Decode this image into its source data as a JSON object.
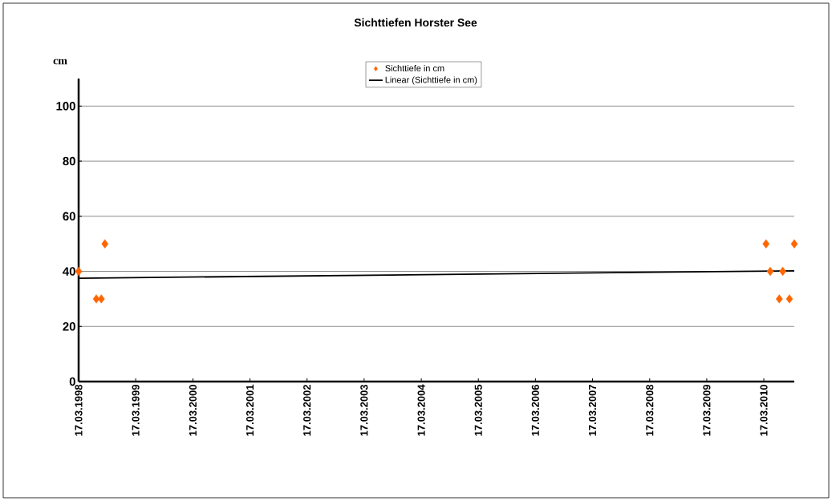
{
  "chart_data": {
    "type": "scatter",
    "title": "Sichttiefen Horster See",
    "ylabel": "cm",
    "series": [
      {
        "name": "Sichttiefe in cm",
        "color": "#ff6600",
        "marker": "diamond",
        "x": [
          "1998-03-17",
          "1998-07-08",
          "1998-08-09",
          "1998-09-01",
          "2010-03-31",
          "2010-04-27",
          "2010-06-24",
          "2010-07-16",
          "2010-08-28",
          "2010-09-28"
        ],
        "values": [
          40,
          30,
          30,
          50,
          50,
          40,
          30,
          40,
          30,
          50
        ]
      },
      {
        "name": "Linear (Sichttiefe in cm)",
        "type": "line",
        "color": "#000000",
        "marker": "none",
        "line_style": "solid",
        "x": [
          "1998-03-17",
          "2010-09-28"
        ],
        "values": [
          37.5,
          40.2
        ]
      }
    ],
    "xlim": [
      "1998-03-17",
      "2010-09-28"
    ],
    "ylim": [
      0,
      110
    ],
    "xticks": [
      {
        "value": "1998-03-17",
        "label": "17.03.1998"
      },
      {
        "value": "1999-03-17",
        "label": "17.03.1999"
      },
      {
        "value": "2000-03-17",
        "label": "17.03.2000"
      },
      {
        "value": "2001-03-17",
        "label": "17.03.2001"
      },
      {
        "value": "2002-03-17",
        "label": "17.03.2002"
      },
      {
        "value": "2003-03-17",
        "label": "17.03.2003"
      },
      {
        "value": "2004-03-17",
        "label": "17.03.2004"
      },
      {
        "value": "2005-03-17",
        "label": "17.03.2005"
      },
      {
        "value": "2006-03-17",
        "label": "17.03.2006"
      },
      {
        "value": "2007-03-17",
        "label": "17.03.2007"
      },
      {
        "value": "2008-03-17",
        "label": "17.03.2008"
      },
      {
        "value": "2009-03-17",
        "label": "17.03.2009"
      },
      {
        "value": "2010-03-17",
        "label": "17.03.2010"
      }
    ],
    "yticks": [
      0,
      20,
      40,
      60,
      80,
      100
    ],
    "grid": "y",
    "legend": "top"
  }
}
